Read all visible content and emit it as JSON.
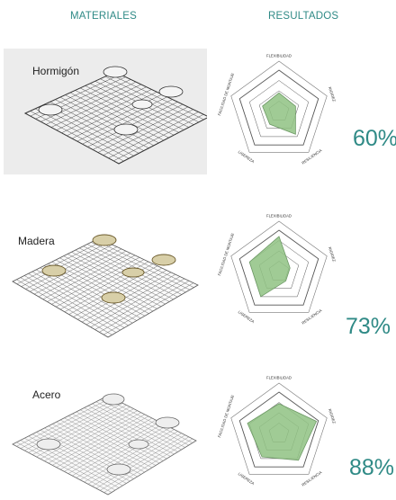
{
  "headers": {
    "materials": "MATERIALES",
    "results": "RESULTADOS"
  },
  "colors": {
    "accent": "#2f8a86",
    "radar_fill": "#8fc283",
    "radar_stroke": "#6e9a66"
  },
  "axes": [
    "FLEXIBILIDAD",
    "RIGIDEZ",
    "RESILIENCIA",
    "LIGEREZA",
    "FACILIDAD DE MONTAJE"
  ],
  "rows": [
    {
      "material": "Hormigón",
      "result": "60%",
      "values": [
        0.45,
        0.42,
        0.68,
        0.38,
        0.42
      ]
    },
    {
      "material": "Madera",
      "result": "73%",
      "values": [
        0.85,
        0.28,
        0.28,
        0.75,
        0.75
      ]
    },
    {
      "material": "Acero",
      "result": "88%",
      "values": [
        0.72,
        0.95,
        0.8,
        0.7,
        0.8
      ]
    }
  ],
  "chart_data": [
    {
      "type": "radar",
      "categories": [
        "FLEXIBILIDAD",
        "RIGIDEZ",
        "RESILIENCIA",
        "LIGEREZA",
        "FACILIDAD DE MONTAJE"
      ],
      "values": [
        0.45,
        0.42,
        0.68,
        0.38,
        0.42
      ],
      "title": "60%"
    },
    {
      "type": "radar",
      "categories": [
        "FLEXIBILIDAD",
        "RIGIDEZ",
        "RESILIENCIA",
        "LIGEREZA",
        "FACILIDAD DE MONTAJE"
      ],
      "values": [
        0.85,
        0.28,
        0.28,
        0.75,
        0.75
      ],
      "title": "73%"
    },
    {
      "type": "radar",
      "categories": [
        "FLEXIBILIDAD",
        "RIGIDEZ",
        "RESILIENCIA",
        "LIGEREZA",
        "FACILIDAD DE MONTAJE"
      ],
      "values": [
        0.72,
        0.95,
        0.8,
        0.7,
        0.8
      ],
      "title": "88%"
    }
  ]
}
